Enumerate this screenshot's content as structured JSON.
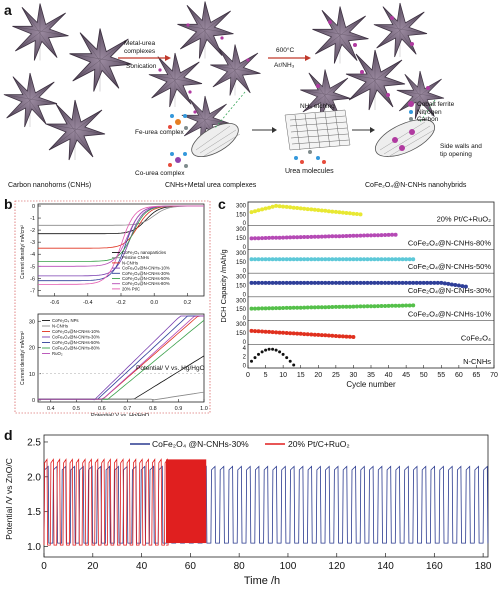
{
  "panel_a": {
    "letter": "a",
    "label_cnh": "Carbon nanohorns (CNHs)",
    "step1_top": "Metal-urea",
    "step1_top2": "complexes",
    "step1_bottom": "Sonication",
    "step2_top": "600°C",
    "step2_bottom": "Ar/NH₃",
    "label_mix": "CNHs+Metal urea complexes",
    "fe_complex": "Fe-urea complex",
    "co_complex": "Co-urea complex",
    "nh3_etching": "NH₃ etching",
    "urea_molecules": "Urea molecules",
    "label_product": "CoFe₂O₄@N-CNHs nanohybrids",
    "legend_cobalt": "Cobalt ferrite",
    "legend_nitrogen": "Nitrogen",
    "legend_carbon": "Carbon",
    "side_walls": "Side walls and",
    "tip_opening": "tip opening"
  },
  "panel_b": {
    "letter": "b",
    "top": {
      "ylabel": "Current density/ mA/cm²",
      "xlabel": "Potential/ V vs. Hg/HgO",
      "xticks": [
        "-0.6",
        "-0.4",
        "-0.2",
        "0.0",
        "0.2"
      ],
      "yticks": [
        "0",
        "-1",
        "-2",
        "-3",
        "-4",
        "-5",
        "-6",
        "-7"
      ],
      "legend": [
        "CoFe₂O₄ nanoparticles",
        "Pristine CNHs",
        "N-CNHs",
        "CoFe₂O₄@N-CNHs-10%",
        "CoFe₂O₄@N-CNHs-30%",
        "CoFe₂O₄@N-CNHs-50%",
        "CoFe₂O₄@N-CNHs-80%",
        "20% Pt/C"
      ]
    },
    "bottom": {
      "ylabel": "Current density/ mA/cm²",
      "xlabel": "Potential/ V vs. Hg/HgO",
      "xticks": [
        "0.4",
        "0.5",
        "0.6",
        "0.7",
        "0.8",
        "0.9",
        "1.0"
      ],
      "yticks": [
        "0",
        "10",
        "20",
        "30"
      ],
      "legend": [
        "CoFe₂O₄ NPs",
        "N-CNHs",
        "CoFe₂O₄@N-CNHs-10%",
        "CoFe₂O₄@N-CNHs-30%",
        "CoFe₂O₄@N-CNHs-50%",
        "CoFe₂O₄@N-CNHs-80%",
        "RuO₂"
      ]
    }
  },
  "panel_c": {
    "letter": "c",
    "ylabel": "DCH Capacity /mAh/g",
    "xlabel": "Cycle number",
    "xticks": [
      "0",
      "5",
      "10",
      "15",
      "20",
      "25",
      "30",
      "35",
      "40",
      "45",
      "50",
      "55",
      "60",
      "65",
      "70"
    ],
    "rows": [
      {
        "name": "20% Pt/C+RuO₂",
        "color": "#e8e832"
      },
      {
        "name": "CoFe₂O₄@N-CNHs-80%",
        "color": "#b54ab5"
      },
      {
        "name": "CoFe₂O₄@N-CNHs-50%",
        "color": "#5cc8d8"
      },
      {
        "name": "CoFe₂O₄@N-CNHs-30%",
        "color": "#2f3f99"
      },
      {
        "name": "CoFe₂O₄@N-CNHs-10%",
        "color": "#55c04a"
      },
      {
        "name": "CoFe₂O₄",
        "color": "#e0301e"
      },
      {
        "name": "N-CNHs",
        "color": "#111111"
      }
    ],
    "row_ticks": [
      [
        "300",
        "150",
        "0"
      ],
      [
        "300",
        "150",
        "0"
      ],
      [
        "300",
        "150",
        "0"
      ],
      [
        "300",
        "150",
        "0"
      ],
      [
        "300",
        "150",
        "0"
      ],
      [
        "300",
        "150",
        "0"
      ],
      [
        "4",
        "2",
        "0"
      ]
    ]
  },
  "panel_d": {
    "letter": "d",
    "ylabel": "Potential /V vs ZnO/C",
    "xlabel": "Time /h",
    "xticks": [
      "0",
      "20",
      "40",
      "60",
      "80",
      "100",
      "120",
      "140",
      "160",
      "180"
    ],
    "yticks": [
      "1.0",
      "1.5",
      "2.0",
      "2.5"
    ],
    "legend_blue": "CoFe₂O₄ @N-CNHs-30%",
    "legend_red": "20% Pt/C+RuO₂",
    "color_blue": "#2a3a8f",
    "color_red": "#e01f1f"
  }
}
